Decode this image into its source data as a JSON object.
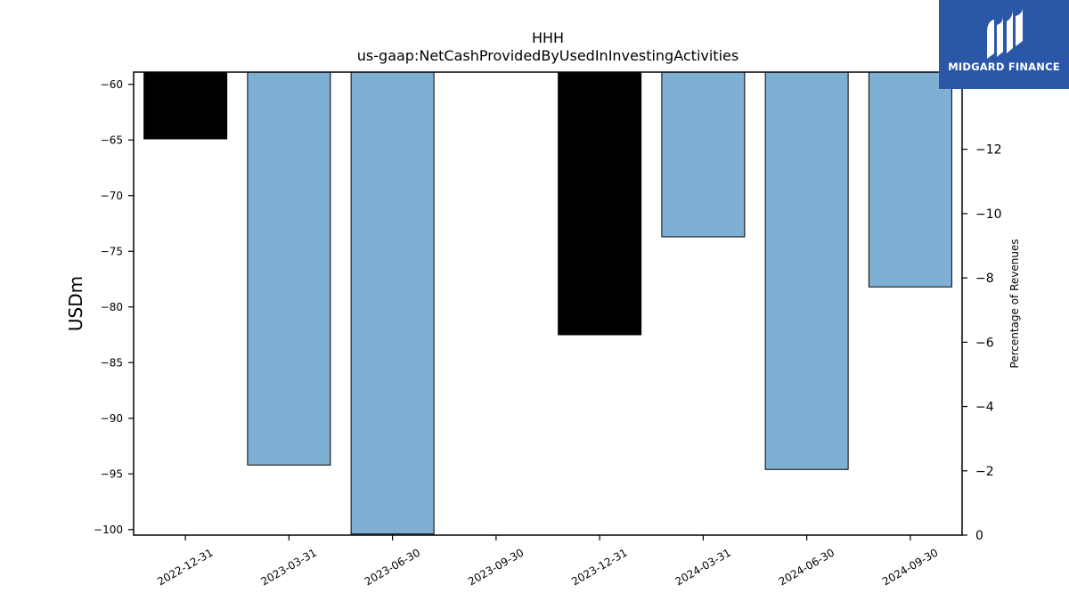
{
  "chart_data": {
    "type": "bar",
    "title": "HHH",
    "subtitle": "us-gaap:NetCashProvidedByUsedInInvestingActivities",
    "ylabel": "USDm",
    "y2label": "Percentage of Revenues",
    "categories": [
      "2022-12-31",
      "2023-03-31",
      "2023-06-30",
      "2023-09-30",
      "2023-12-31",
      "2024-03-31",
      "2024-06-30",
      "2024-09-30"
    ],
    "values": [
      -64.9,
      -94.2,
      -100.4,
      null,
      -82.5,
      -73.7,
      -94.6,
      -78.2
    ],
    "bar_colors": [
      "#000000",
      "#7fb0d3",
      "#7fb0d3",
      "#7fb0d3",
      "#000000",
      "#7fb0d3",
      "#7fb0d3",
      "#7fb0d3"
    ],
    "ylim": [
      -100.5,
      -58.9
    ],
    "yticks": [
      -60,
      -65,
      -70,
      -75,
      -80,
      -85,
      -90,
      -95,
      -100
    ],
    "y2lim": [
      0,
      -14.4
    ],
    "y2ticks": [
      -12,
      -10,
      -8,
      -6,
      -4,
      -2,
      0
    ],
    "grid": false
  },
  "logo": {
    "text": "MIDGARD FINANCE"
  }
}
